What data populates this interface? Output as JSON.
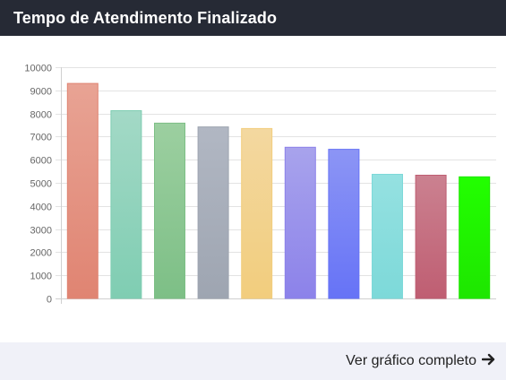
{
  "header": {
    "title": "Tempo de Atendimento Finalizado"
  },
  "footer": {
    "link_label": "Ver gráfico completo",
    "arrow_icon": "arrow-right-icon"
  },
  "chart_data": {
    "type": "bar",
    "title": "",
    "xlabel": "",
    "ylabel": "",
    "ylim": [
      0,
      10000
    ],
    "yticks": [
      0,
      1000,
      2000,
      3000,
      4000,
      5000,
      6000,
      7000,
      8000,
      9000,
      10000
    ],
    "grid": true,
    "values": [
      9300,
      8120,
      7580,
      7420,
      7350,
      6540,
      6450,
      5370,
      5330,
      5260
    ],
    "colors": [
      [
        "#e8a394",
        "#e08472"
      ],
      [
        "#a3d9c6",
        "#7fcdb2"
      ],
      [
        "#9ccfa0",
        "#7dbf86"
      ],
      [
        "#b1b7c3",
        "#9ea5b1"
      ],
      [
        "#f3d8a0",
        "#f2cd7d"
      ],
      [
        "#a8a3ec",
        "#8c82ea"
      ],
      [
        "#8c95f5",
        "#6673f6"
      ],
      [
        "#95e1e1",
        "#7dd9d9"
      ],
      [
        "#cb8190",
        "#bf5e72"
      ],
      [
        "#22ff00",
        "#1ee600"
      ]
    ]
  }
}
